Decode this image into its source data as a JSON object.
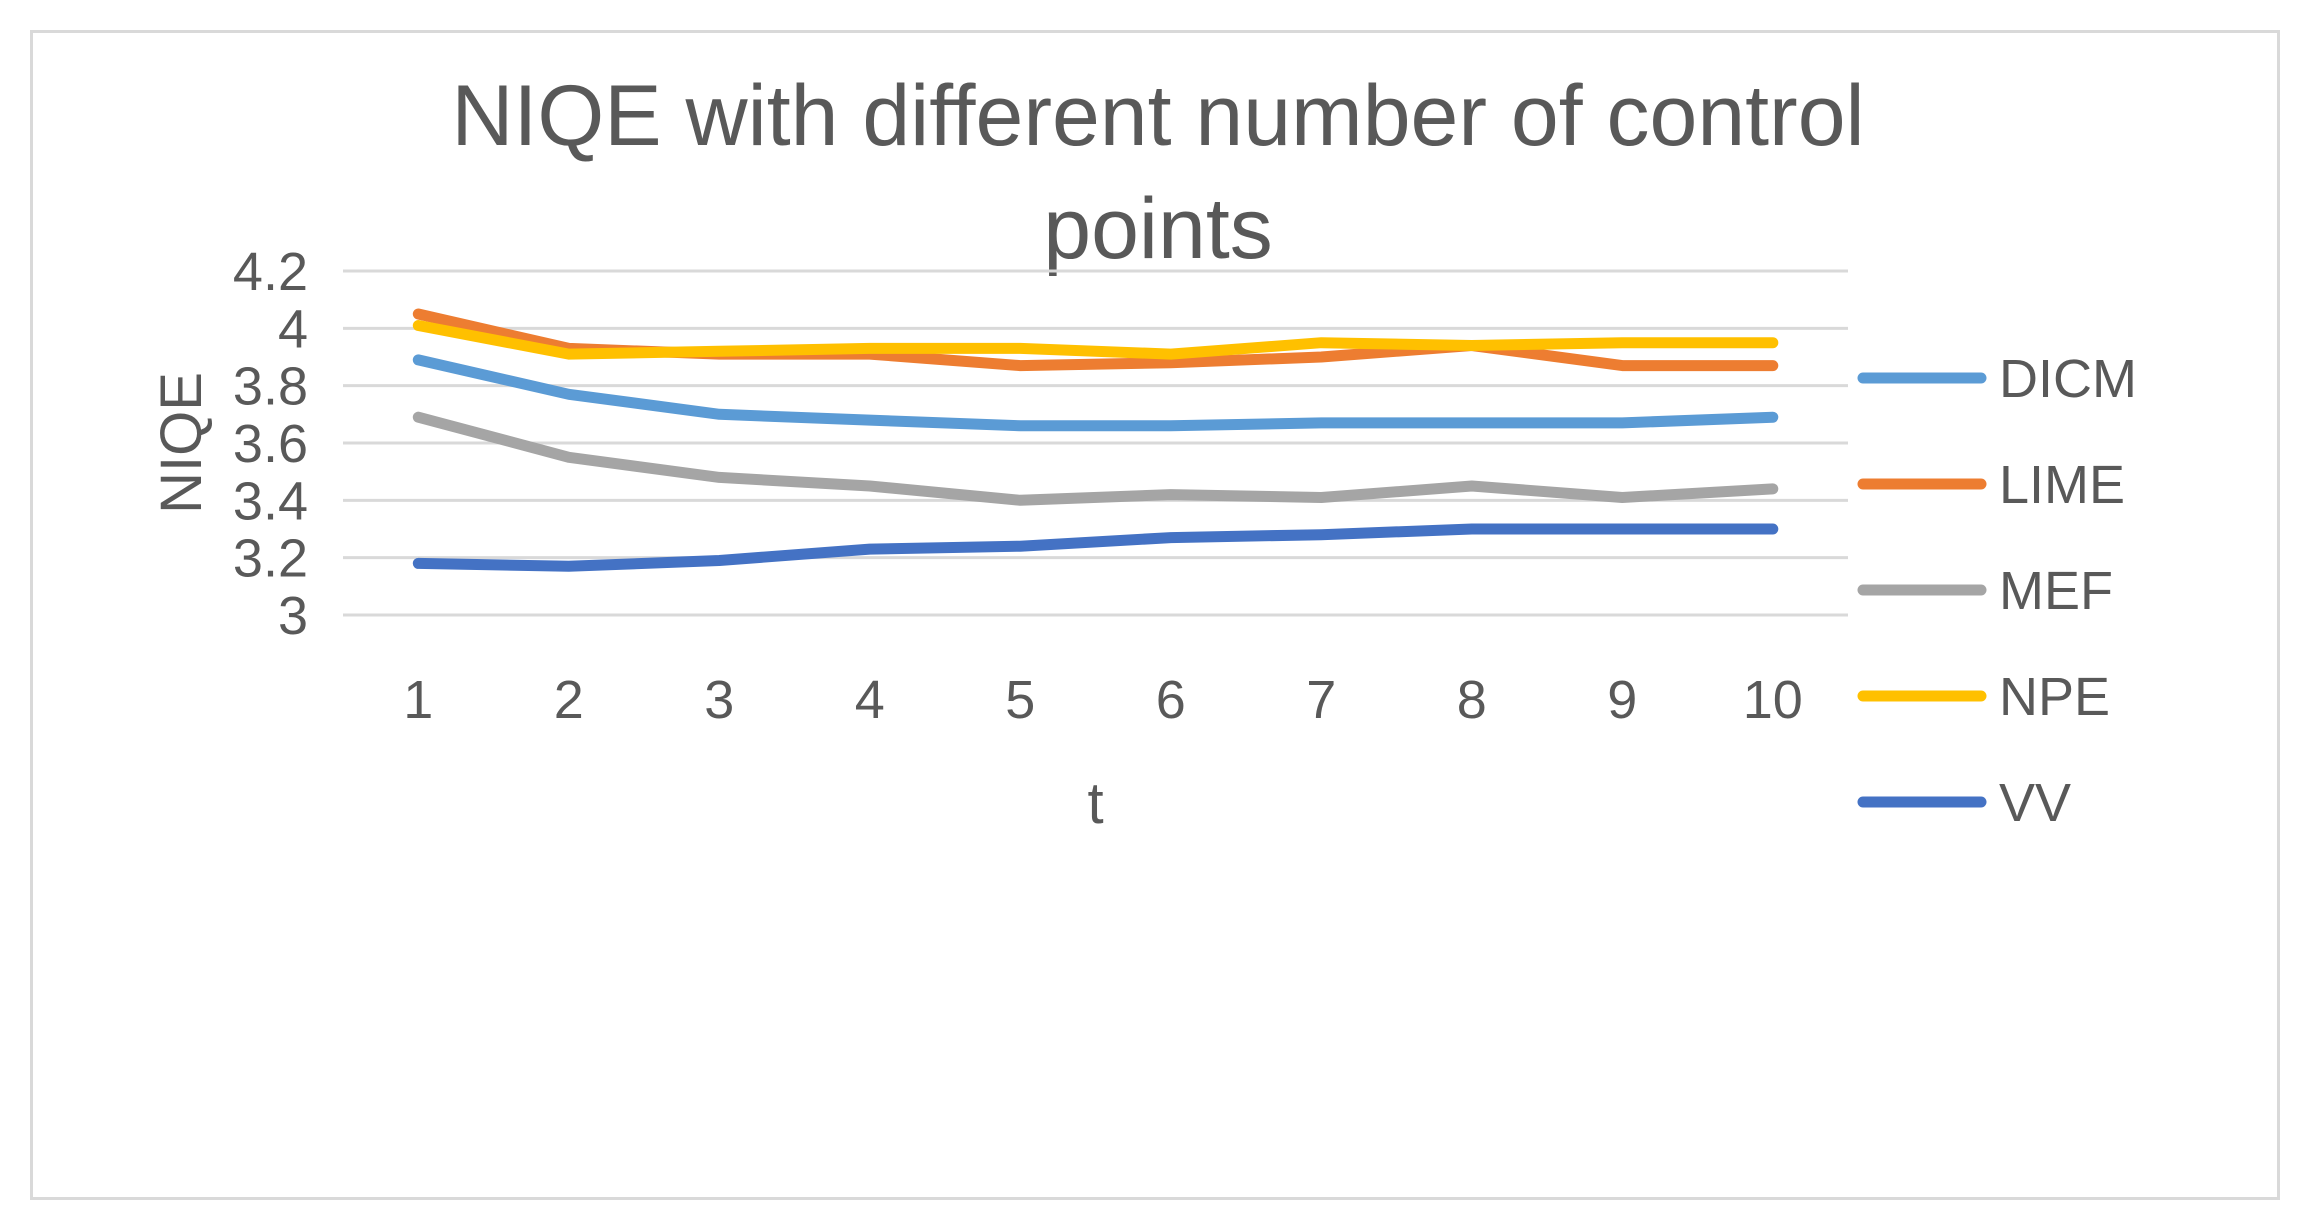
{
  "chart_data": {
    "type": "line",
    "title_lines": [
      "NIQE with different number of control",
      "points"
    ],
    "xlabel": "t",
    "ylabel": "NIQE",
    "x": [
      1,
      2,
      3,
      4,
      5,
      6,
      7,
      8,
      9,
      10
    ],
    "ylim": [
      3,
      4.2
    ],
    "yticks": [
      "3",
      "3.2",
      "3.4",
      "3.6",
      "3.8",
      "4",
      "4.2"
    ],
    "ytick_values": [
      3,
      3.2,
      3.4,
      3.6,
      3.8,
      4,
      4.2
    ],
    "grid": true,
    "legend_position": "right",
    "series": [
      {
        "name": "DICM",
        "color": "#5b9bd5",
        "values": [
          3.89,
          3.77,
          3.7,
          3.68,
          3.66,
          3.66,
          3.67,
          3.67,
          3.67,
          3.69
        ]
      },
      {
        "name": "LIME",
        "color": "#ed7d31",
        "values": [
          4.05,
          3.93,
          3.91,
          3.91,
          3.87,
          3.88,
          3.9,
          3.94,
          3.87,
          3.87
        ]
      },
      {
        "name": "MEF",
        "color": "#a5a5a5",
        "values": [
          3.69,
          3.55,
          3.48,
          3.45,
          3.4,
          3.42,
          3.41,
          3.45,
          3.41,
          3.44
        ]
      },
      {
        "name": "NPE",
        "color": "#ffc000",
        "values": [
          4.01,
          3.91,
          3.92,
          3.93,
          3.93,
          3.91,
          3.95,
          3.94,
          3.95,
          3.95
        ]
      },
      {
        "name": "VV",
        "color": "#4472c4",
        "values": [
          3.18,
          3.17,
          3.19,
          3.23,
          3.24,
          3.27,
          3.28,
          3.3,
          3.3,
          3.3
        ]
      }
    ]
  }
}
